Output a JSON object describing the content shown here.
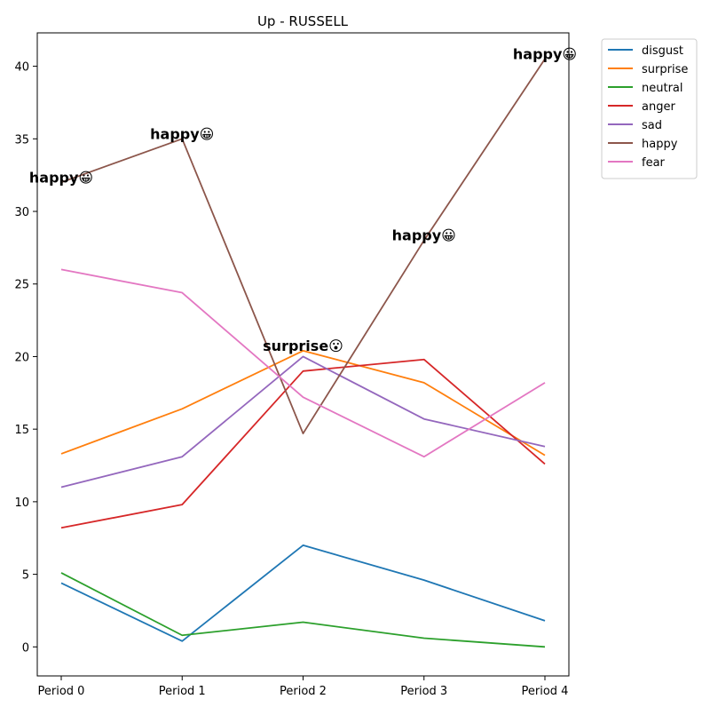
{
  "chart_data": {
    "type": "line",
    "title": "Up - RUSSELL",
    "xlabel": "",
    "ylabel": "",
    "categories": [
      "Period 0",
      "Period 1",
      "Period 2",
      "Period 3",
      "Period 4"
    ],
    "ylim": [
      -2,
      42.3
    ],
    "yticks": [
      0,
      5,
      10,
      15,
      20,
      25,
      30,
      35,
      40
    ],
    "grid": false,
    "legend_position": "outside-top-right",
    "series": [
      {
        "name": "disgust",
        "color": "#1f77b4",
        "values": [
          4.4,
          0.4,
          7.0,
          4.6,
          1.8
        ]
      },
      {
        "name": "surprise",
        "color": "#ff7f0e",
        "values": [
          13.3,
          16.4,
          20.4,
          18.2,
          13.2
        ]
      },
      {
        "name": "neutral",
        "color": "#2ca02c",
        "values": [
          5.1,
          0.8,
          1.7,
          0.6,
          0.0
        ]
      },
      {
        "name": "anger",
        "color": "#d62728",
        "values": [
          8.2,
          9.8,
          19.0,
          19.8,
          12.6
        ]
      },
      {
        "name": "sad",
        "color": "#9467bd",
        "values": [
          11.0,
          13.1,
          20.0,
          15.7,
          13.8
        ]
      },
      {
        "name": "happy",
        "color": "#8c564b",
        "values": [
          32.0,
          35.0,
          14.7,
          28.0,
          40.5
        ]
      },
      {
        "name": "fear",
        "color": "#e377c2",
        "values": [
          26.0,
          24.4,
          17.2,
          13.1,
          18.2
        ]
      }
    ],
    "annotations": [
      {
        "text": "happy😀",
        "x": 0,
        "y": 32.0
      },
      {
        "text": "happy😀",
        "x": 1,
        "y": 35.0
      },
      {
        "text": "surprise😮",
        "x": 2,
        "y": 20.4
      },
      {
        "text": "happy😀",
        "x": 3,
        "y": 28.0
      },
      {
        "text": "happy😀",
        "x": 4,
        "y": 40.5
      }
    ]
  }
}
